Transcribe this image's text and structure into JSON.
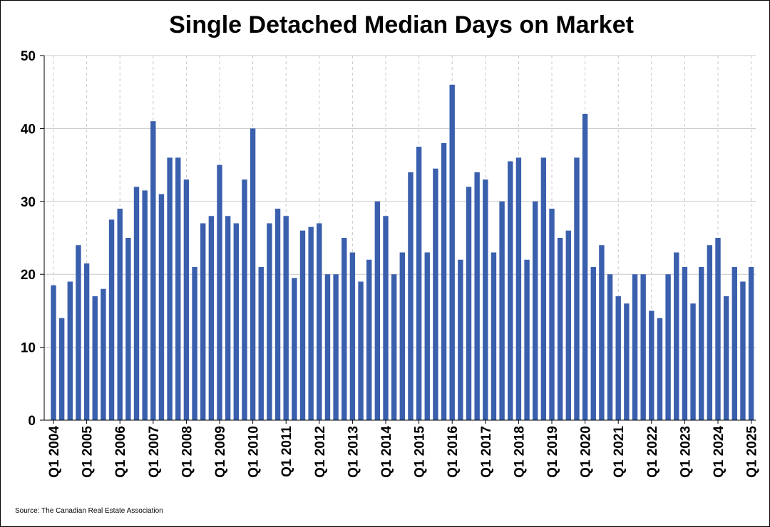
{
  "chart_data": {
    "type": "bar",
    "title": "Single Detached Median Days on Market",
    "source": "Source: The Canadian Real Estate Association",
    "xlabel": "",
    "ylabel": "",
    "ylim": [
      0,
      50
    ],
    "yticks": [
      0,
      10,
      20,
      30,
      40,
      50
    ],
    "grid": {
      "horizontal": true,
      "vertical_dashed": true
    },
    "bar_color": "#3a5fad",
    "tick_labels": [
      "Q1 2004",
      "Q1 2005",
      "Q1 2006",
      "Q1 2007",
      "Q1 2008",
      "Q1 2009",
      "Q1 2010",
      "Q1 2011",
      "Q1 2012",
      "Q1 2013",
      "Q1 2014",
      "Q1 2015",
      "Q1 2016",
      "Q1 2017",
      "Q1 2018",
      "Q1 2019",
      "Q1 2020",
      "Q1 2021",
      "Q1 2022",
      "Q1 2023",
      "Q1 2024",
      "Q1 2025"
    ],
    "categories": [
      "Q1 2004",
      "Q2 2004",
      "Q3 2004",
      "Q4 2004",
      "Q1 2005",
      "Q2 2005",
      "Q3 2005",
      "Q4 2005",
      "Q1 2006",
      "Q2 2006",
      "Q3 2006",
      "Q4 2006",
      "Q1 2007",
      "Q2 2007",
      "Q3 2007",
      "Q4 2007",
      "Q1 2008",
      "Q2 2008",
      "Q3 2008",
      "Q4 2008",
      "Q1 2009",
      "Q2 2009",
      "Q3 2009",
      "Q4 2009",
      "Q1 2010",
      "Q2 2010",
      "Q3 2010",
      "Q4 2010",
      "Q1 2011",
      "Q2 2011",
      "Q3 2011",
      "Q4 2011",
      "Q1 2012",
      "Q2 2012",
      "Q3 2012",
      "Q4 2012",
      "Q1 2013",
      "Q2 2013",
      "Q3 2013",
      "Q4 2013",
      "Q1 2014",
      "Q2 2014",
      "Q3 2014",
      "Q4 2014",
      "Q1 2015",
      "Q2 2015",
      "Q3 2015",
      "Q4 2015",
      "Q1 2016",
      "Q2 2016",
      "Q3 2016",
      "Q4 2016",
      "Q1 2017",
      "Q2 2017",
      "Q3 2017",
      "Q4 2017",
      "Q1 2018",
      "Q2 2018",
      "Q3 2018",
      "Q4 2018",
      "Q1 2019",
      "Q2 2019",
      "Q3 2019",
      "Q4 2019",
      "Q1 2020",
      "Q2 2020",
      "Q3 2020",
      "Q4 2020",
      "Q1 2021",
      "Q2 2021",
      "Q3 2021",
      "Q4 2021",
      "Q1 2022",
      "Q2 2022",
      "Q3 2022",
      "Q4 2022",
      "Q1 2023",
      "Q2 2023",
      "Q3 2023",
      "Q4 2023",
      "Q1 2024",
      "Q2 2024",
      "Q3 2024",
      "Q4 2024",
      "Q1 2025"
    ],
    "values": [
      18.5,
      14,
      19,
      24,
      21.5,
      17,
      18,
      27.5,
      29,
      25,
      32,
      31.5,
      41,
      31,
      36,
      36,
      33,
      21,
      27,
      28,
      35,
      28,
      27,
      33,
      40,
      21,
      27,
      29,
      28,
      19.5,
      26,
      26.5,
      27,
      20,
      20,
      25,
      23,
      19,
      22,
      30,
      28,
      20,
      23,
      34,
      37.5,
      23,
      34.5,
      38,
      46,
      22,
      32,
      34,
      33,
      23,
      30,
      35.5,
      36,
      22,
      30,
      36,
      29,
      25,
      26,
      36,
      42,
      21,
      24,
      20,
      17,
      16,
      20,
      20,
      15,
      14,
      20,
      23,
      21,
      16,
      21,
      24,
      25,
      17,
      21,
      19,
      21
    ]
  }
}
